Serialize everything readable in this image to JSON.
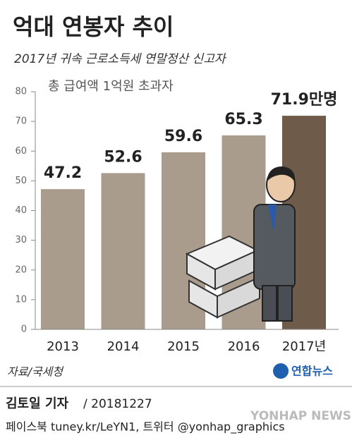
{
  "chart_data": {
    "type": "bar",
    "title": "억대 연봉자 추이",
    "subtitle": "2017년 귀속 근로소득세 연말정산 신고자",
    "annotation": "총 급여액 1억원 초과자",
    "categories": [
      "2013",
      "2014",
      "2015",
      "2016",
      "2017년"
    ],
    "values": [
      47.2,
      52.6,
      59.6,
      65.3,
      71.9
    ],
    "value_labels": [
      "47.2",
      "52.6",
      "59.6",
      "65.3",
      "71.9만명"
    ],
    "colors": [
      "#a99c8d",
      "#a99c8d",
      "#a99c8d",
      "#a99c8d",
      "#6f5b49"
    ],
    "ylim": [
      0,
      80
    ],
    "yticks": [
      0,
      10,
      20,
      30,
      40,
      50,
      60,
      70,
      80
    ],
    "source": "자료/국세청",
    "logo": "연합뉴스",
    "watermark": "YONHAP NEWS",
    "author": "김토일 기자",
    "date": "/ 20181227",
    "contact": "페이스북 tuney.kr/LeYN1, 트위터 @yonhap_graphics"
  }
}
